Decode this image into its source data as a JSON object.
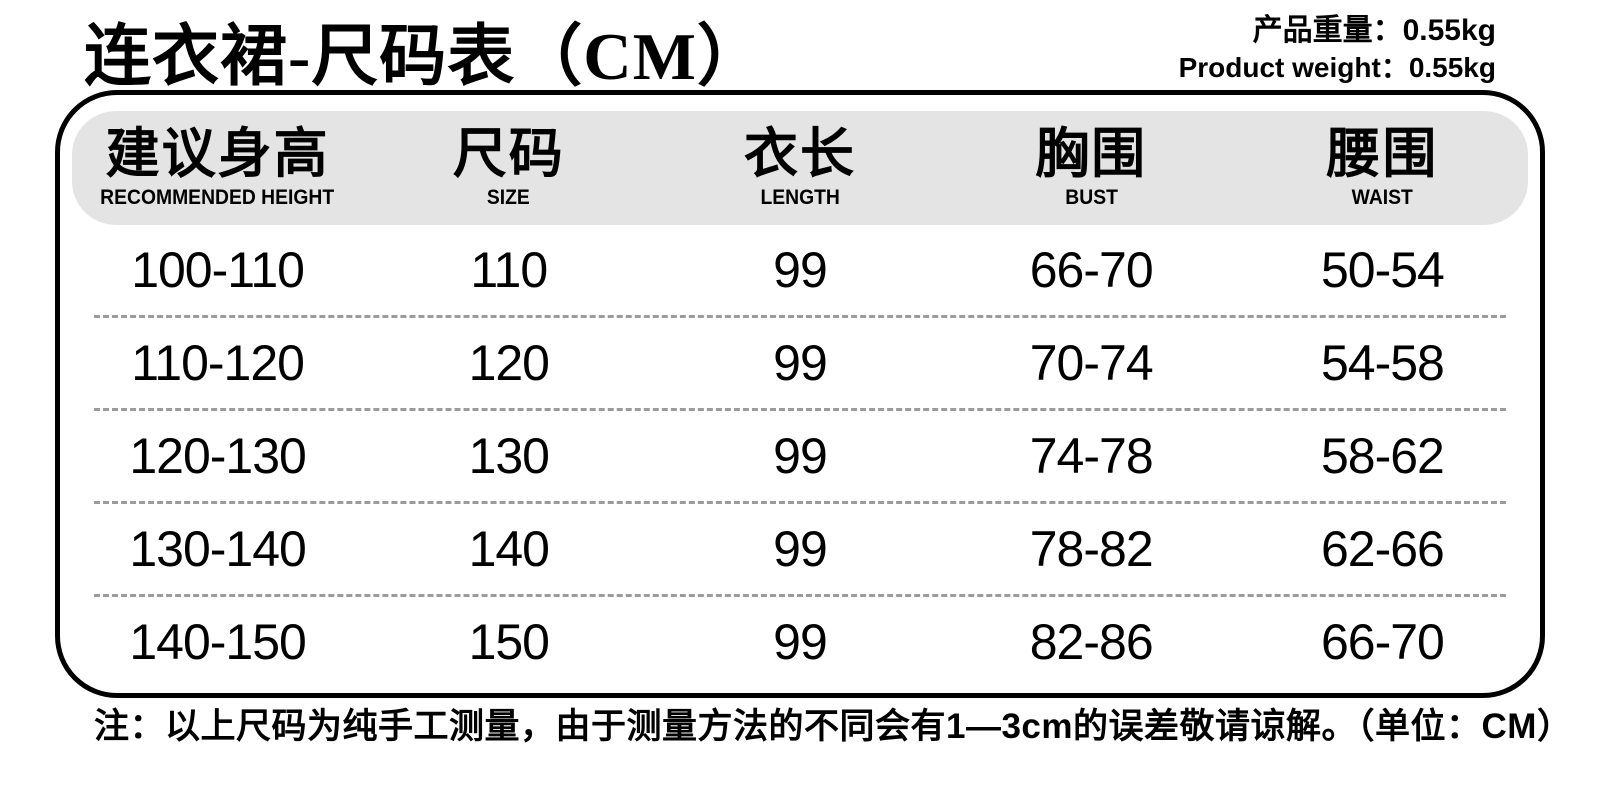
{
  "page": {
    "title": "连衣裙-尺码表（CM）",
    "weight_cn": "产品重量：0.55kg",
    "weight_en": "Product weight：0.55kg",
    "note": "注：以上尺码为纯手工测量，由于测量方法的不同会有1—3cm的误差敬请谅解。（单位：CM）"
  },
  "chart_data": {
    "type": "table",
    "title": "连衣裙-尺码表（CM）",
    "unit": "CM",
    "product_weight": "0.55kg",
    "columns": [
      {
        "cn": "建议身高",
        "en": "RECOMMENDED HEIGHT"
      },
      {
        "cn": "尺码",
        "en": "SIZE"
      },
      {
        "cn": "衣长",
        "en": "LENGTH"
      },
      {
        "cn": "胸围",
        "en": "BUST"
      },
      {
        "cn": "腰围",
        "en": "WAIST"
      }
    ],
    "rows": [
      [
        "100-110",
        "110",
        "99",
        "66-70",
        "50-54"
      ],
      [
        "110-120",
        "120",
        "99",
        "70-74",
        "54-58"
      ],
      [
        "120-130",
        "130",
        "99",
        "74-78",
        "58-62"
      ],
      [
        "130-140",
        "140",
        "99",
        "78-82",
        "62-66"
      ],
      [
        "140-150",
        "150",
        "99",
        "82-86",
        "66-70"
      ]
    ],
    "colors": {
      "header_band": "#e4e4e4",
      "border": "#000000",
      "divider": "#9b9b9b",
      "text": "#000000"
    }
  }
}
